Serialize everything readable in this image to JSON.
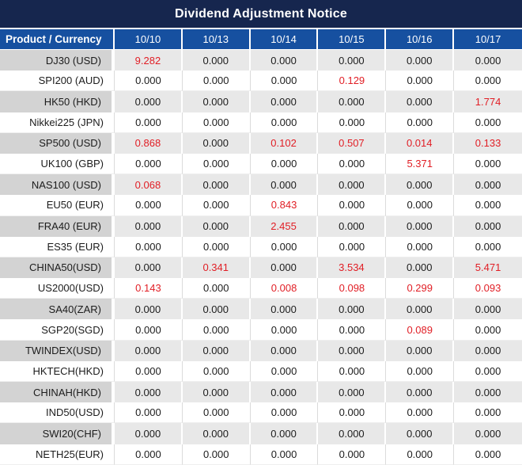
{
  "title": "Dividend Adjustment Notice",
  "colors": {
    "title_bar_bg": "#16264e",
    "header_bg": "#1650a0",
    "header_text": "#ffffff",
    "row_gray_product": "#d3d3d3",
    "row_gray_data": "#e8e8e8",
    "value_black": "#1c1c1c",
    "value_red": "#e11e25"
  },
  "table": {
    "header_label": "Product / Currency",
    "columns": [
      "10/10",
      "10/13",
      "10/14",
      "10/15",
      "10/16",
      "10/17"
    ],
    "rows": [
      {
        "product": "DJ30 (USD)",
        "values": [
          "9.282",
          "0.000",
          "0.000",
          "0.000",
          "0.000",
          "0.000"
        ],
        "red": [
          true,
          false,
          false,
          false,
          false,
          false
        ]
      },
      {
        "product": "SPI200 (AUD)",
        "values": [
          "0.000",
          "0.000",
          "0.000",
          "0.129",
          "0.000",
          "0.000"
        ],
        "red": [
          false,
          false,
          false,
          true,
          false,
          false
        ]
      },
      {
        "product": "HK50 (HKD)",
        "values": [
          "0.000",
          "0.000",
          "0.000",
          "0.000",
          "0.000",
          "1.774"
        ],
        "red": [
          false,
          false,
          false,
          false,
          false,
          true
        ]
      },
      {
        "product": "Nikkei225 (JPN)",
        "values": [
          "0.000",
          "0.000",
          "0.000",
          "0.000",
          "0.000",
          "0.000"
        ],
        "red": [
          false,
          false,
          false,
          false,
          false,
          false
        ]
      },
      {
        "product": "SP500 (USD)",
        "values": [
          "0.868",
          "0.000",
          "0.102",
          "0.507",
          "0.014",
          "0.133"
        ],
        "red": [
          true,
          false,
          true,
          true,
          true,
          true
        ]
      },
      {
        "product": "UK100 (GBP)",
        "values": [
          "0.000",
          "0.000",
          "0.000",
          "0.000",
          "5.371",
          "0.000"
        ],
        "red": [
          false,
          false,
          false,
          false,
          true,
          false
        ]
      },
      {
        "product": "NAS100 (USD)",
        "values": [
          "0.068",
          "0.000",
          "0.000",
          "0.000",
          "0.000",
          "0.000"
        ],
        "red": [
          true,
          false,
          false,
          false,
          false,
          false
        ]
      },
      {
        "product": "EU50 (EUR)",
        "values": [
          "0.000",
          "0.000",
          "0.843",
          "0.000",
          "0.000",
          "0.000"
        ],
        "red": [
          false,
          false,
          true,
          false,
          false,
          false
        ]
      },
      {
        "product": "FRA40 (EUR)",
        "values": [
          "0.000",
          "0.000",
          "2.455",
          "0.000",
          "0.000",
          "0.000"
        ],
        "red": [
          false,
          false,
          true,
          false,
          false,
          false
        ]
      },
      {
        "product": "ES35 (EUR)",
        "values": [
          "0.000",
          "0.000",
          "0.000",
          "0.000",
          "0.000",
          "0.000"
        ],
        "red": [
          false,
          false,
          false,
          false,
          false,
          false
        ]
      },
      {
        "product": "CHINA50(USD)",
        "values": [
          "0.000",
          "0.341",
          "0.000",
          "3.534",
          "0.000",
          "5.471"
        ],
        "red": [
          false,
          true,
          false,
          true,
          false,
          true
        ]
      },
      {
        "product": "US2000(USD)",
        "values": [
          "0.143",
          "0.000",
          "0.008",
          "0.098",
          "0.299",
          "0.093"
        ],
        "red": [
          true,
          false,
          true,
          true,
          true,
          true
        ]
      },
      {
        "product": "SA40(ZAR)",
        "values": [
          "0.000",
          "0.000",
          "0.000",
          "0.000",
          "0.000",
          "0.000"
        ],
        "red": [
          false,
          false,
          false,
          false,
          false,
          false
        ]
      },
      {
        "product": "SGP20(SGD)",
        "values": [
          "0.000",
          "0.000",
          "0.000",
          "0.000",
          "0.089",
          "0.000"
        ],
        "red": [
          false,
          false,
          false,
          false,
          true,
          false
        ]
      },
      {
        "product": "TWINDEX(USD)",
        "values": [
          "0.000",
          "0.000",
          "0.000",
          "0.000",
          "0.000",
          "0.000"
        ],
        "red": [
          false,
          false,
          false,
          false,
          false,
          false
        ]
      },
      {
        "product": "HKTECH(HKD)",
        "values": [
          "0.000",
          "0.000",
          "0.000",
          "0.000",
          "0.000",
          "0.000"
        ],
        "red": [
          false,
          false,
          false,
          false,
          false,
          false
        ]
      },
      {
        "product": "CHINAH(HKD)",
        "values": [
          "0.000",
          "0.000",
          "0.000",
          "0.000",
          "0.000",
          "0.000"
        ],
        "red": [
          false,
          false,
          false,
          false,
          false,
          false
        ]
      },
      {
        "product": "IND50(USD)",
        "values": [
          "0.000",
          "0.000",
          "0.000",
          "0.000",
          "0.000",
          "0.000"
        ],
        "red": [
          false,
          false,
          false,
          false,
          false,
          false
        ]
      },
      {
        "product": "SWI20(CHF)",
        "values": [
          "0.000",
          "0.000",
          "0.000",
          "0.000",
          "0.000",
          "0.000"
        ],
        "red": [
          false,
          false,
          false,
          false,
          false,
          false
        ]
      },
      {
        "product": "NETH25(EUR)",
        "values": [
          "0.000",
          "0.000",
          "0.000",
          "0.000",
          "0.000",
          "0.000"
        ],
        "red": [
          false,
          false,
          false,
          false,
          false,
          false
        ]
      }
    ]
  }
}
